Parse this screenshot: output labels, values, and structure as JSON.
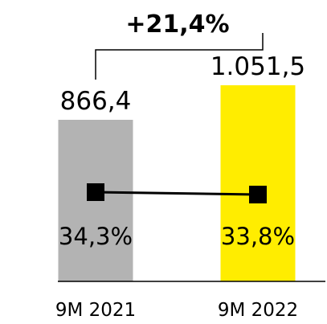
{
  "chart_data": {
    "type": "bar",
    "categories": [
      "9M 2021",
      "9M 2022"
    ],
    "values": [
      866.4,
      1051.5
    ],
    "value_labels": [
      "866,4",
      "1.051,5"
    ],
    "bar_colors": [
      "#b3b3b3",
      "#ffed00"
    ],
    "line_series": {
      "values": [
        34.3,
        33.8
      ],
      "labels": [
        "34,3%",
        "33,8%"
      ],
      "color": "#000000"
    },
    "growth_annotation": "+21,4%",
    "title": "",
    "xlabel": "",
    "ylabel": "",
    "grid": false,
    "legend": "none"
  }
}
